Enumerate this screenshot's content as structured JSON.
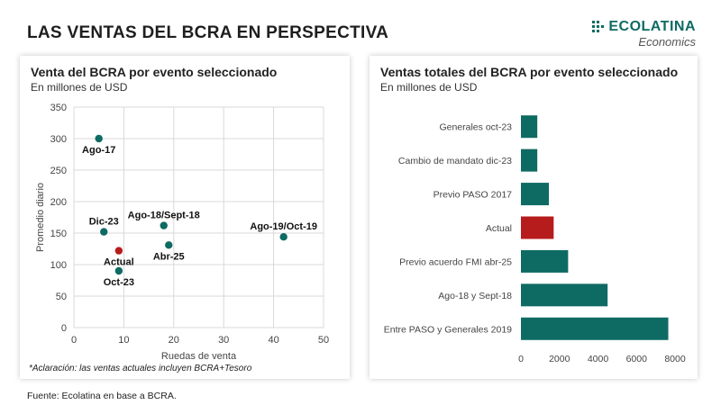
{
  "title": "LAS VENTAS DEL BCRA EN PERSPECTIVA",
  "logo": {
    "name": "ECOLATINA",
    "subtitle": "Economics"
  },
  "colors": {
    "teal": "#0e6b63",
    "red": "#b71c1c",
    "grid": "#d9d9d9",
    "text": "#222222"
  },
  "footer": "Fuente: Ecolatina en base a BCRA.",
  "note": "*Aclaración: las ventas actuales incluyen BCRA+Tesoro",
  "left_panel": {
    "title": "Venta del BCRA por evento seleccionado",
    "subtitle": "En millones de USD"
  },
  "right_panel": {
    "title": "Ventas totales del BCRA por evento seleccionado",
    "subtitle": "En millones de USD"
  },
  "chart_data": [
    {
      "type": "scatter",
      "title": "Venta del BCRA por evento seleccionado",
      "subtitle": "En millones de USD",
      "xlabel": "Ruedas de venta",
      "ylabel": "Promedio diario",
      "xlim": [
        0,
        50
      ],
      "ylim": [
        0,
        350
      ],
      "xticks": [
        0,
        10,
        20,
        30,
        40,
        50
      ],
      "yticks": [
        0,
        50,
        100,
        150,
        200,
        250,
        300,
        350
      ],
      "grid": true,
      "points": [
        {
          "label": "Ago-17",
          "x": 5,
          "y": 300,
          "highlight": false,
          "label_pos": "below"
        },
        {
          "label": "Dic-23",
          "x": 6,
          "y": 152,
          "highlight": false,
          "label_pos": "above"
        },
        {
          "label": "Actual",
          "x": 9,
          "y": 122,
          "highlight": true,
          "label_pos": "below"
        },
        {
          "label": "Oct-23",
          "x": 9,
          "y": 90,
          "highlight": false,
          "label_pos": "below"
        },
        {
          "label": "Ago-18/Sept-18",
          "x": 18,
          "y": 162,
          "highlight": false,
          "label_pos": "above"
        },
        {
          "label": "Abr-25",
          "x": 19,
          "y": 131,
          "highlight": false,
          "label_pos": "below"
        },
        {
          "label": "Ago-19/Oct-19",
          "x": 42,
          "y": 144,
          "highlight": false,
          "label_pos": "above"
        }
      ]
    },
    {
      "type": "bar",
      "orientation": "horizontal",
      "title": "Ventas totales del BCRA por evento seleccionado",
      "subtitle": "En millones de USD",
      "categories": [
        "Generales oct-23",
        "Cambio de mandato dic-23",
        "Previo PASO 2017",
        "Actual",
        "Previo acuerdo FMI abr-25",
        "Ago-18 y Sept-18",
        "Entre PASO y Generales 2019"
      ],
      "values": [
        850,
        850,
        1450,
        1700,
        2450,
        4500,
        7650
      ],
      "highlight": [
        false,
        false,
        false,
        true,
        false,
        false,
        false
      ],
      "xlim": [
        0,
        8000
      ],
      "xticks": [
        0,
        2000,
        4000,
        6000,
        8000
      ]
    }
  ]
}
